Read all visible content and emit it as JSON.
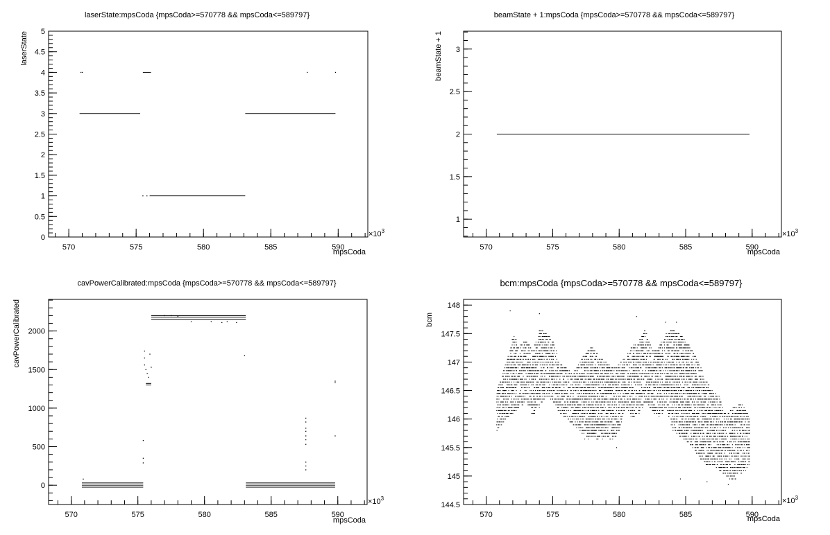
{
  "chart_data": [
    {
      "type": "scatter",
      "title": "laserState:mpsCoda {mpsCoda>=570778 && mpsCoda<=589797}",
      "xlabel": "mpsCoda",
      "ylabel": "laserState",
      "x_multiplier_label": "×10",
      "x_multiplier_exp": "3",
      "xlim": [
        568.5,
        592.2
      ],
      "ylim": [
        0,
        5
      ],
      "xticks": [
        "570",
        "575",
        "580",
        "585",
        "590"
      ],
      "yticks": [
        "0",
        "0.5",
        "1",
        "1.5",
        "2",
        "2.5",
        "3",
        "3.5",
        "4",
        "4.5",
        "5"
      ],
      "segments": [
        {
          "x": [
            570.8,
            575.3
          ],
          "y": 3
        },
        {
          "x": [
            575.5,
            576.1
          ],
          "y": 4
        },
        {
          "x": [
            576.0,
            583.1
          ],
          "y": 1
        },
        {
          "x": [
            583.1,
            589.8
          ],
          "y": 3
        }
      ],
      "points": [
        {
          "x": 570.9,
          "y": 4
        },
        {
          "x": 571.0,
          "y": 4
        },
        {
          "x": 575.5,
          "y": 1
        },
        {
          "x": 575.8,
          "y": 1
        },
        {
          "x": 587.7,
          "y": 4
        },
        {
          "x": 589.8,
          "y": 4
        }
      ]
    },
    {
      "type": "scatter",
      "title": "beamState + 1:mpsCoda {mpsCoda>=570778 && mpsCoda<=589797}",
      "xlabel": "mpsCoda",
      "ylabel": "beamState + 1",
      "x_multiplier_label": "×10",
      "x_multiplier_exp": "3",
      "xlim": [
        568.3,
        592.2
      ],
      "ylim": [
        0.79,
        3.21
      ],
      "xticks": [
        "570",
        "575",
        "580",
        "585",
        "590"
      ],
      "yticks": [
        "1",
        "1.5",
        "2",
        "2.5",
        "3"
      ],
      "segments": [
        {
          "x": [
            570.8,
            589.8
          ],
          "y": 2
        }
      ],
      "points": []
    },
    {
      "type": "scatter",
      "title": "cavPowerCalibrated:mpsCoda {mpsCoda>=570778 && mpsCoda<=589797}",
      "xlabel": "mpsCoda",
      "ylabel": "cavPowerCalibrated",
      "x_multiplier_label": "×10",
      "x_multiplier_exp": "3",
      "xlim": [
        568.3,
        592.2
      ],
      "ylim": [
        -250,
        2410
      ],
      "xticks": [
        "570",
        "575",
        "580",
        "585",
        "590"
      ],
      "yticks": [
        "0",
        "500",
        "1000",
        "1500",
        "2000"
      ],
      "segments": [
        {
          "x": [
            570.8,
            575.4
          ],
          "y": 30
        },
        {
          "x": [
            570.8,
            575.4
          ],
          "y": 0
        },
        {
          "x": [
            570.8,
            575.4
          ],
          "y": -25
        },
        {
          "x": [
            575.6,
            576.0
          ],
          "y": 1320
        },
        {
          "x": [
            575.6,
            576.0
          ],
          "y": 1300
        },
        {
          "x": [
            576.0,
            583.1
          ],
          "y": 2200
        },
        {
          "x": [
            576.0,
            583.1
          ],
          "y": 2180
        },
        {
          "x": [
            576.0,
            583.1
          ],
          "y": 2150
        },
        {
          "x": [
            583.1,
            589.8
          ],
          "y": 30
        },
        {
          "x": [
            583.1,
            589.8
          ],
          "y": 0
        },
        {
          "x": [
            583.1,
            589.8
          ],
          "y": -25
        }
      ],
      "points": [
        {
          "x": 570.9,
          "y": 80
        },
        {
          "x": 575.4,
          "y": 580
        },
        {
          "x": 575.4,
          "y": 350
        },
        {
          "x": 575.4,
          "y": 290
        },
        {
          "x": 575.5,
          "y": 1740
        },
        {
          "x": 575.5,
          "y": 1650
        },
        {
          "x": 575.5,
          "y": 1560
        },
        {
          "x": 575.6,
          "y": 1500
        },
        {
          "x": 575.7,
          "y": 1450
        },
        {
          "x": 575.8,
          "y": 1400
        },
        {
          "x": 575.9,
          "y": 1700
        },
        {
          "x": 576.0,
          "y": 1530
        },
        {
          "x": 577.0,
          "y": 2200
        },
        {
          "x": 577.5,
          "y": 2200
        },
        {
          "x": 578.0,
          "y": 2190
        },
        {
          "x": 579.0,
          "y": 2120
        },
        {
          "x": 580.5,
          "y": 2120
        },
        {
          "x": 581.3,
          "y": 2110
        },
        {
          "x": 581.7,
          "y": 2120
        },
        {
          "x": 582.4,
          "y": 2110
        },
        {
          "x": 583.0,
          "y": 1680
        },
        {
          "x": 587.6,
          "y": 870
        },
        {
          "x": 587.6,
          "y": 820
        },
        {
          "x": 587.6,
          "y": 740
        },
        {
          "x": 587.6,
          "y": 700
        },
        {
          "x": 587.6,
          "y": 640
        },
        {
          "x": 587.6,
          "y": 590
        },
        {
          "x": 587.6,
          "y": 530
        },
        {
          "x": 587.6,
          "y": 300
        },
        {
          "x": 587.6,
          "y": 250
        },
        {
          "x": 587.6,
          "y": 200
        },
        {
          "x": 589.8,
          "y": 1350
        },
        {
          "x": 589.8,
          "y": 1330
        },
        {
          "x": 589.8,
          "y": 640
        }
      ]
    },
    {
      "type": "scatter",
      "title": "bcm:mpsCoda {mpsCoda>=570778 && mpsCoda<=589797}",
      "xlabel": "mpsCoda",
      "ylabel": "bcm",
      "x_multiplier_label": "×10",
      "x_multiplier_exp": "3",
      "xlim": [
        568.3,
        592.2
      ],
      "ylim": [
        144.5,
        148.1
      ],
      "xticks": [
        "570",
        "575",
        "580",
        "585",
        "590"
      ],
      "yticks": [
        "144.5",
        "145",
        "145.5",
        "146",
        "146.5",
        "147",
        "147.5",
        "148"
      ],
      "band": {
        "x": [
          570.8,
          571.5,
          572.0,
          572.5,
          573.0,
          573.5,
          574.0,
          574.5,
          575.0,
          575.5,
          576.0,
          576.5,
          577.0,
          577.5,
          578.0,
          578.5,
          579.0,
          579.5,
          580.0,
          580.5,
          581.0,
          581.5,
          582.0,
          582.5,
          583.0,
          583.5,
          584.0,
          584.5,
          585.0,
          585.5,
          586.0,
          586.5,
          587.0,
          587.5,
          588.0,
          588.5,
          589.0,
          589.5,
          589.8
        ],
        "low": [
          145.8,
          146.0,
          146.1,
          146.2,
          146.3,
          146.0,
          146.2,
          146.4,
          146.3,
          146.1,
          146.0,
          145.9,
          145.8,
          145.6,
          145.7,
          145.6,
          145.7,
          145.6,
          145.8,
          146.2,
          146.0,
          146.1,
          146.3,
          146.1,
          146.0,
          146.2,
          145.8,
          145.7,
          145.6,
          145.5,
          145.3,
          145.2,
          145.2,
          145.1,
          145.0,
          144.9,
          145.0,
          145.1,
          145.2
        ],
        "high": [
          146.5,
          147.0,
          147.5,
          147.3,
          147.4,
          147.2,
          147.6,
          147.5,
          147.4,
          147.0,
          146.9,
          146.8,
          147.0,
          147.2,
          147.3,
          147.1,
          147.0,
          146.9,
          147.0,
          147.1,
          147.3,
          147.4,
          147.6,
          147.2,
          147.3,
          147.5,
          147.6,
          147.5,
          147.4,
          147.2,
          147.0,
          146.7,
          146.5,
          146.4,
          146.1,
          146.2,
          146.3,
          146.2,
          146.0
        ]
      },
      "outliers": [
        {
          "x": 571.8,
          "y": 147.9
        },
        {
          "x": 574.0,
          "y": 147.85
        },
        {
          "x": 581.3,
          "y": 147.8
        },
        {
          "x": 584.3,
          "y": 147.7
        },
        {
          "x": 583.5,
          "y": 147.7
        },
        {
          "x": 577.2,
          "y": 145.8
        },
        {
          "x": 579.8,
          "y": 145.5
        },
        {
          "x": 584.6,
          "y": 144.95
        },
        {
          "x": 588.2,
          "y": 144.85
        },
        {
          "x": 586.6,
          "y": 144.9
        }
      ]
    }
  ]
}
